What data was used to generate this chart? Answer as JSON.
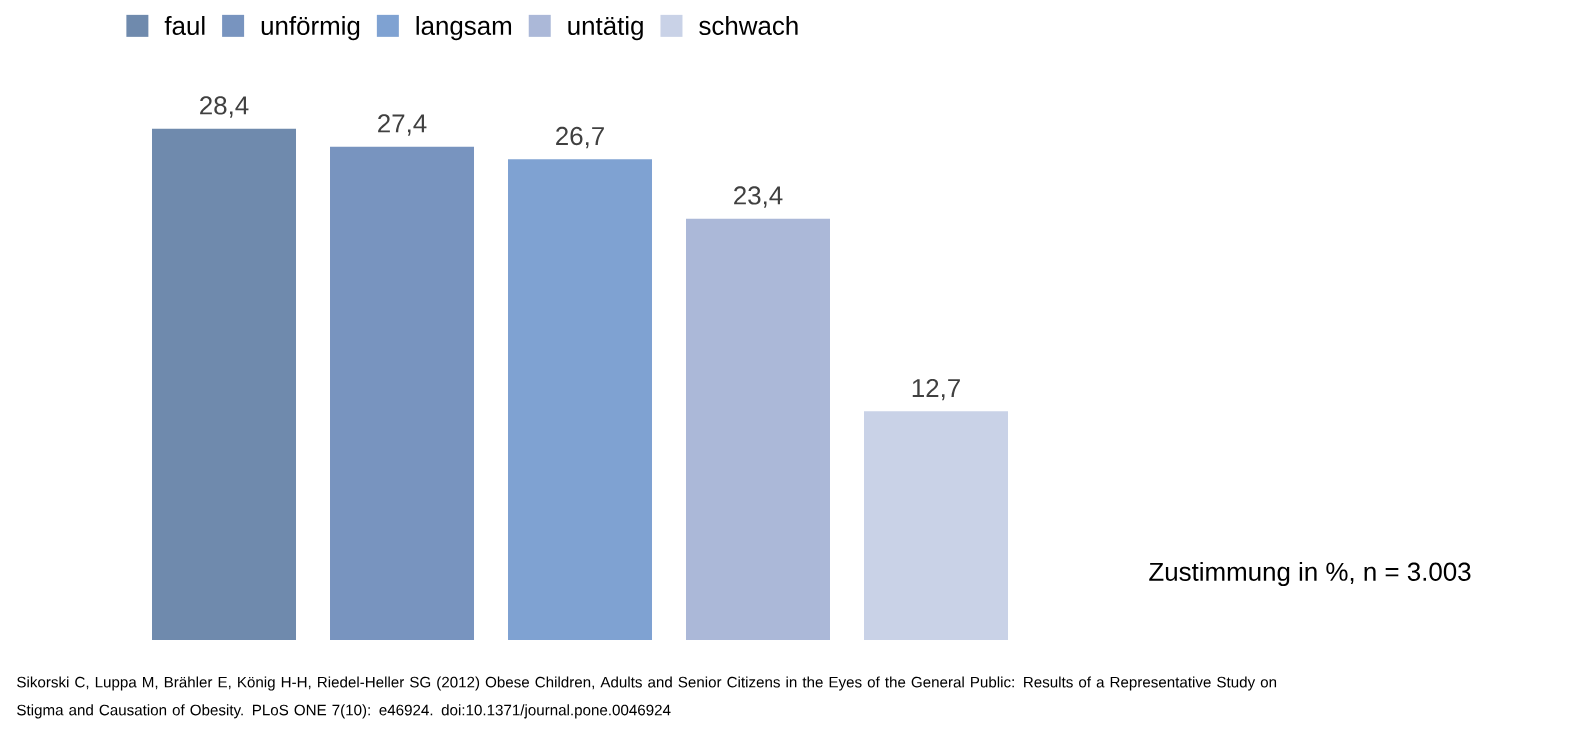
{
  "chart_data": {
    "type": "bar",
    "categories": [
      null
    ],
    "series": [
      {
        "name": "faul",
        "color": "#6f8aad",
        "values": [
          28.4
        ],
        "value_labels": [
          "28,4"
        ]
      },
      {
        "name": "unförmig",
        "color": "#7894bf",
        "values": [
          27.4
        ],
        "value_labels": [
          "27,4"
        ]
      },
      {
        "name": "langsam",
        "color": "#7fa2d2",
        "values": [
          26.7
        ],
        "value_labels": [
          "26,7"
        ]
      },
      {
        "name": "untätig",
        "color": "#abb8d8",
        "values": [
          23.4
        ],
        "value_labels": [
          "23,4"
        ]
      },
      {
        "name": "schwach",
        "color": "#c9d2e7",
        "values": [
          12.7
        ],
        "value_labels": [
          "12,7"
        ]
      }
    ],
    "legend": "top left",
    "annotations": [
      "Zustimmung in %, n = 3.003",
      "Sikorski C, Luppa M, Brähler E, König H-H, Riedel-Heller SG (2012) Obese Children, Adults and Senior Citizens in the Eyes of the General Public: Results of a Representative Study on Stigma and Causation of Obesity. PLoS ONE 7(10): e46924. doi:10.1371/journal.pone.0046924"
    ]
  }
}
